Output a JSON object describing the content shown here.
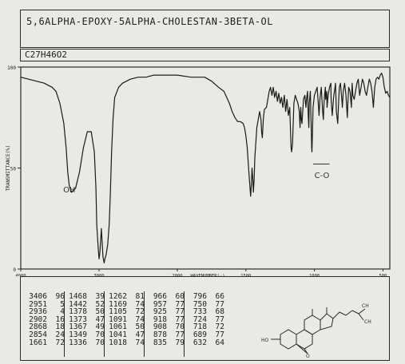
{
  "title": "5,6ALPHA-EPOXY-5ALPHA-CHOLESTAN-3BETA-OL",
  "formula": "C27H46O2",
  "chart_data": {
    "type": "line",
    "xlabel": "WAVENUMBER(-)",
    "ylabel": "TRANSMITTANCE(%)",
    "x_reversed": true,
    "xlim": [
      4000,
      450
    ],
    "ylim": [
      0,
      100
    ],
    "x_ticks": [
      {
        "value": 4000,
        "label": "4000"
      },
      {
        "value": 3000,
        "label": "3000"
      },
      {
        "value": 2000,
        "label": "2000"
      },
      {
        "value": 1500,
        "label": "1500"
      },
      {
        "value": 1000,
        "label": "1000"
      },
      {
        "value": 500,
        "label": "500"
      }
    ],
    "y_ticks": [
      {
        "value": 100,
        "label": "100"
      },
      {
        "value": 50,
        "label": "50"
      },
      {
        "value": 0,
        "label": "0"
      }
    ],
    "annotations": [
      {
        "text": "OH",
        "x": 3380,
        "y": 38
      },
      {
        "text": "C-O",
        "x": 945,
        "y": 45
      }
    ],
    "series": [
      {
        "x": [
          4000,
          3900,
          3800,
          3700,
          3650,
          3600,
          3550,
          3500,
          3450,
          3420,
          3400,
          3380,
          3350,
          3300,
          3250,
          3200,
          3150,
          3100,
          3060,
          3040,
          3030,
          3010,
          3000,
          2990,
          2970,
          2950,
          2935,
          2925,
          2910,
          2890,
          2870,
          2855,
          2840,
          2820,
          2800,
          2750,
          2700,
          2600,
          2500,
          2400,
          2300,
          2200,
          2100,
          2000,
          1900,
          1800,
          1750,
          1700,
          1660,
          1640,
          1620,
          1600,
          1580,
          1560,
          1540,
          1520,
          1510,
          1500,
          1490,
          1480,
          1470,
          1465,
          1460,
          1455,
          1450,
          1445,
          1440,
          1435,
          1420,
          1400,
          1390,
          1385,
          1380,
          1376,
          1372,
          1365,
          1350,
          1340,
          1330,
          1320,
          1310,
          1300,
          1290,
          1280,
          1270,
          1260,
          1250,
          1240,
          1230,
          1220,
          1210,
          1200,
          1190,
          1180,
          1170,
          1166,
          1160,
          1150,
          1140,
          1130,
          1120,
          1110,
          1105,
          1100,
          1095,
          1091,
          1085,
          1080,
          1070,
          1065,
          1062,
          1058,
          1050,
          1045,
          1041,
          1038,
          1030,
          1020,
          1018,
          1014,
          1010,
          1000,
          990,
          980,
          970,
          966,
          960,
          957,
          950,
          940,
          935,
          930,
          926,
          920,
          918,
          910,
          908,
          900,
          890,
          880,
          878,
          870,
          860,
          850,
          846,
          840,
          830,
          825,
          818,
          810,
          800,
          796,
          790,
          780,
          770,
          760,
          755,
          750,
          740,
          730,
          725,
          720,
          710,
          700,
          690,
          680,
          670,
          660,
          650,
          640,
          630,
          620,
          610,
          600,
          590,
          580,
          570,
          560,
          550,
          540,
          530,
          520,
          510,
          500,
          490,
          480,
          470,
          460,
          450
        ],
        "y": [
          95,
          94,
          93,
          92,
          91,
          90,
          88,
          82,
          72,
          60,
          48,
          41,
          38,
          40,
          48,
          60,
          68,
          68,
          58,
          40,
          22,
          10,
          5,
          8,
          20,
          6,
          3,
          5,
          7,
          12,
          22,
          38,
          58,
          75,
          85,
          90,
          92,
          94,
          95,
          95,
          96,
          96,
          96,
          96,
          95,
          95,
          93,
          90,
          88,
          85,
          82,
          78,
          75,
          73,
          73,
          72,
          70,
          66,
          60,
          50,
          40,
          36,
          42,
          50,
          45,
          38,
          44,
          55,
          70,
          78,
          74,
          68,
          65,
          70,
          75,
          79,
          80,
          84,
          88,
          90,
          86,
          90,
          85,
          88,
          83,
          87,
          82,
          85,
          80,
          86,
          78,
          84,
          76,
          80,
          60,
          58,
          62,
          82,
          86,
          84,
          82,
          78,
          70,
          80,
          74,
          72,
          78,
          84,
          86,
          82,
          80,
          84,
          88,
          76,
          70,
          82,
          88,
          60,
          58,
          68,
          80,
          86,
          88,
          90,
          80,
          76,
          84,
          86,
          90,
          78,
          74,
          82,
          86,
          90,
          84,
          88,
          80,
          86,
          90,
          92,
          84,
          76,
          85,
          90,
          92,
          78,
          72,
          80,
          90,
          92,
          84,
          80,
          88,
          92,
          86,
          75,
          84,
          90,
          88,
          80,
          92,
          86,
          84,
          88,
          92,
          94,
          86,
          90,
          94,
          92,
          88,
          86,
          90,
          94,
          92,
          88,
          80,
          90,
          94,
          95,
          94,
          96,
          97,
          95,
          90,
          87,
          88,
          86,
          85
        ]
      }
    ]
  },
  "peak_table": [
    [
      [
        "3406",
        "96"
      ],
      [
        "2951",
        "5"
      ],
      [
        "2936",
        "4"
      ],
      [
        "2902",
        "16"
      ],
      [
        "2868",
        "18"
      ],
      [
        "2854",
        "24"
      ],
      [
        "1661",
        "72"
      ]
    ],
    [
      [
        "1468",
        "39"
      ],
      [
        "1442",
        "52"
      ],
      [
        "1378",
        "50"
      ],
      [
        "1373",
        "47"
      ],
      [
        "1367",
        "49"
      ],
      [
        "1349",
        "70"
      ],
      [
        "1336",
        "70"
      ]
    ],
    [
      [
        "1262",
        "81"
      ],
      [
        "1169",
        "74"
      ],
      [
        "1105",
        "72"
      ],
      [
        "1091",
        "74"
      ],
      [
        "1061",
        "50"
      ],
      [
        "1041",
        "47"
      ],
      [
        "1018",
        "74"
      ]
    ],
    [
      [
        "966",
        "60"
      ],
      [
        "957",
        "77"
      ],
      [
        "925",
        "77"
      ],
      [
        "918",
        "77"
      ],
      [
        "908",
        "70"
      ],
      [
        "878",
        "77"
      ],
      [
        "835",
        "79"
      ]
    ],
    [
      [
        "796",
        "66"
      ],
      [
        "750",
        "77"
      ],
      [
        "733",
        "68"
      ],
      [
        "724",
        "77"
      ],
      [
        "718",
        "72"
      ],
      [
        "689",
        "77"
      ],
      [
        "632",
        "64"
      ]
    ]
  ]
}
